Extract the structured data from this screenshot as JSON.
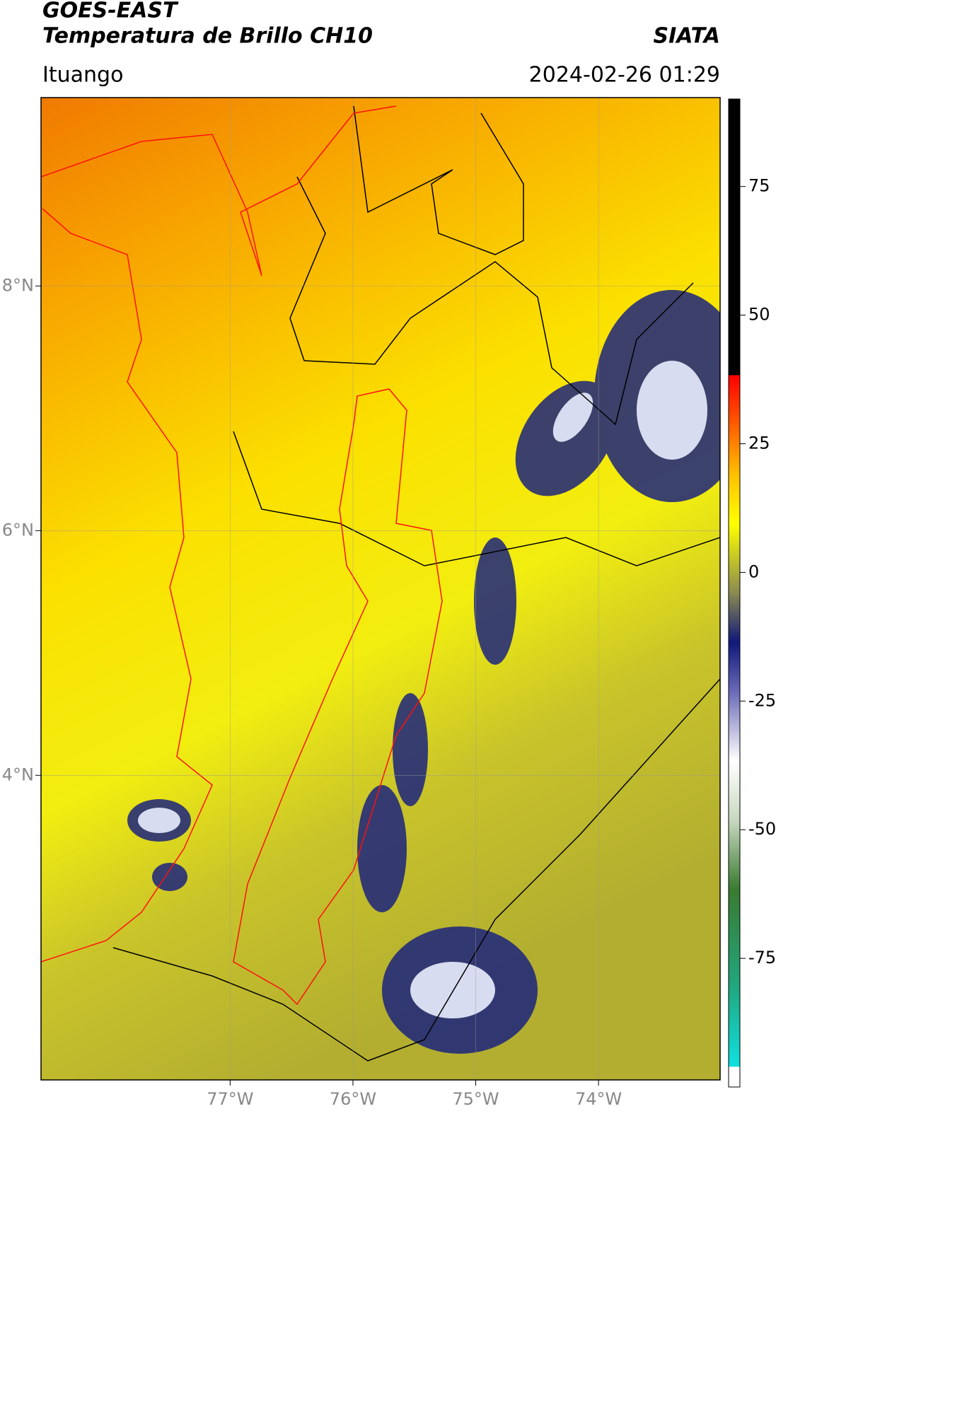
{
  "header": {
    "title": "GOES-EAST",
    "subtitle": "Temperatura de Brillo CH10",
    "source": "SIATA",
    "location": "Ituango",
    "datetime": "2024-02-26 01:29"
  },
  "map": {
    "xlim": [
      -78.54,
      -73.01
    ],
    "ylim": [
      1.51,
      9.54
    ],
    "xticks": [
      {
        "value": -77,
        "label": "77°W"
      },
      {
        "value": -76,
        "label": "76°W"
      },
      {
        "value": -75,
        "label": "75°W"
      },
      {
        "value": -74,
        "label": "74°W"
      }
    ],
    "yticks": [
      {
        "value": 8,
        "label": "8°N"
      },
      {
        "value": 6,
        "label": "6°N"
      },
      {
        "value": 4,
        "label": "4°N"
      }
    ],
    "grid": true
  },
  "colorbar": {
    "lim": [
      -100,
      92
    ],
    "ticks": [
      75,
      50,
      25,
      0,
      -25,
      -50,
      -75
    ]
  }
}
